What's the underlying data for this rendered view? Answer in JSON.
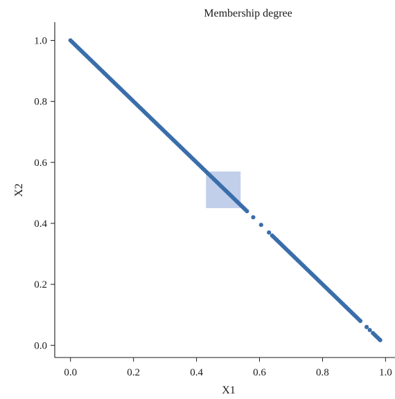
{
  "chart_data": {
    "type": "scatter",
    "title": "Membership degree",
    "xlabel": "X1",
    "ylabel": "X2",
    "xlim": [
      -0.05,
      1.03
    ],
    "ylim": [
      -0.04,
      1.06
    ],
    "xticks": [
      "0.0",
      "0.2",
      "0.4",
      "0.6",
      "0.8",
      "1.0"
    ],
    "yticks": [
      "0.0",
      "0.2",
      "0.4",
      "0.6",
      "0.8",
      "1.0"
    ],
    "grid": false,
    "highlight_box": {
      "x": [
        0.43,
        0.54
      ],
      "y": [
        0.45,
        0.57
      ],
      "color": "#b3c3e6"
    },
    "series": [
      {
        "color": "#3a6eaa",
        "x": [
          0.0,
          0.005,
          0.01,
          0.015,
          0.02,
          0.025,
          0.03,
          0.035,
          0.04,
          0.045,
          0.05,
          0.055,
          0.06,
          0.065,
          0.07,
          0.075,
          0.08,
          0.085,
          0.09,
          0.095,
          0.1,
          0.105,
          0.11,
          0.115,
          0.12,
          0.125,
          0.13,
          0.135,
          0.14,
          0.145,
          0.15,
          0.155,
          0.16,
          0.165,
          0.17,
          0.175,
          0.18,
          0.185,
          0.19,
          0.195,
          0.2,
          0.205,
          0.21,
          0.215,
          0.22,
          0.225,
          0.23,
          0.235,
          0.24,
          0.245,
          0.25,
          0.255,
          0.26,
          0.265,
          0.27,
          0.275,
          0.28,
          0.285,
          0.29,
          0.295,
          0.3,
          0.305,
          0.31,
          0.315,
          0.32,
          0.325,
          0.33,
          0.335,
          0.34,
          0.345,
          0.35,
          0.355,
          0.36,
          0.365,
          0.37,
          0.375,
          0.38,
          0.385,
          0.39,
          0.395,
          0.4,
          0.405,
          0.41,
          0.415,
          0.42,
          0.425,
          0.43,
          0.435,
          0.44,
          0.445,
          0.45,
          0.455,
          0.46,
          0.465,
          0.47,
          0.475,
          0.48,
          0.485,
          0.49,
          0.495,
          0.5,
          0.505,
          0.51,
          0.515,
          0.52,
          0.525,
          0.53,
          0.535,
          0.54,
          0.545,
          0.55,
          0.555,
          0.56,
          0.58,
          0.605,
          0.63,
          0.64,
          0.645,
          0.65,
          0.655,
          0.66,
          0.665,
          0.67,
          0.675,
          0.68,
          0.685,
          0.69,
          0.695,
          0.7,
          0.705,
          0.71,
          0.715,
          0.72,
          0.725,
          0.73,
          0.735,
          0.74,
          0.745,
          0.75,
          0.755,
          0.76,
          0.765,
          0.77,
          0.775,
          0.78,
          0.785,
          0.79,
          0.795,
          0.8,
          0.805,
          0.81,
          0.815,
          0.82,
          0.825,
          0.83,
          0.835,
          0.84,
          0.845,
          0.85,
          0.855,
          0.86,
          0.865,
          0.87,
          0.875,
          0.88,
          0.885,
          0.89,
          0.895,
          0.9,
          0.905,
          0.91,
          0.915,
          0.92,
          0.94,
          0.95,
          0.96,
          0.965,
          0.97,
          0.975,
          0.98,
          0.983
        ],
        "y": [
          1.0,
          0.995,
          0.99,
          0.985,
          0.98,
          0.975,
          0.97,
          0.965,
          0.96,
          0.955,
          0.95,
          0.945,
          0.94,
          0.935,
          0.93,
          0.925,
          0.92,
          0.915,
          0.91,
          0.905,
          0.9,
          0.895,
          0.89,
          0.885,
          0.88,
          0.875,
          0.87,
          0.865,
          0.86,
          0.855,
          0.85,
          0.845,
          0.84,
          0.835,
          0.83,
          0.825,
          0.82,
          0.815,
          0.81,
          0.805,
          0.8,
          0.795,
          0.79,
          0.785,
          0.78,
          0.775,
          0.77,
          0.765,
          0.76,
          0.755,
          0.75,
          0.745,
          0.74,
          0.735,
          0.73,
          0.725,
          0.72,
          0.715,
          0.71,
          0.705,
          0.7,
          0.695,
          0.69,
          0.685,
          0.68,
          0.675,
          0.67,
          0.665,
          0.66,
          0.655,
          0.65,
          0.645,
          0.64,
          0.635,
          0.63,
          0.625,
          0.62,
          0.615,
          0.61,
          0.605,
          0.6,
          0.595,
          0.59,
          0.585,
          0.58,
          0.575,
          0.57,
          0.565,
          0.56,
          0.555,
          0.55,
          0.545,
          0.54,
          0.535,
          0.53,
          0.525,
          0.52,
          0.515,
          0.51,
          0.505,
          0.5,
          0.495,
          0.49,
          0.485,
          0.48,
          0.475,
          0.47,
          0.465,
          0.46,
          0.455,
          0.45,
          0.445,
          0.44,
          0.42,
          0.395,
          0.37,
          0.36,
          0.355,
          0.35,
          0.345,
          0.34,
          0.335,
          0.33,
          0.325,
          0.32,
          0.315,
          0.31,
          0.305,
          0.3,
          0.295,
          0.29,
          0.285,
          0.28,
          0.275,
          0.27,
          0.265,
          0.26,
          0.255,
          0.25,
          0.245,
          0.24,
          0.235,
          0.23,
          0.225,
          0.22,
          0.215,
          0.21,
          0.205,
          0.2,
          0.195,
          0.19,
          0.185,
          0.18,
          0.175,
          0.17,
          0.165,
          0.16,
          0.155,
          0.15,
          0.145,
          0.14,
          0.135,
          0.13,
          0.125,
          0.12,
          0.115,
          0.11,
          0.105,
          0.1,
          0.095,
          0.09,
          0.085,
          0.08,
          0.06,
          0.05,
          0.04,
          0.035,
          0.03,
          0.025,
          0.02,
          0.017
        ]
      }
    ]
  }
}
